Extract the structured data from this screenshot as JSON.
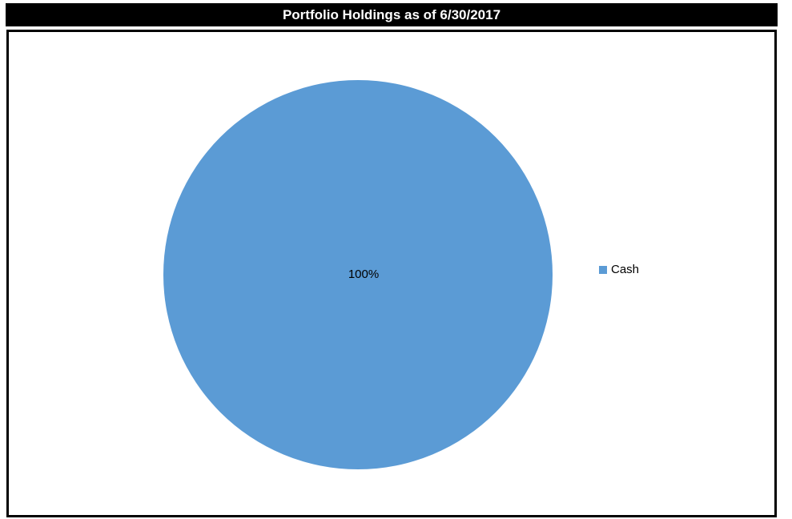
{
  "chart_data": {
    "type": "pie",
    "title": "Portfolio Holdings as of 6/30/2017",
    "categories": [
      "Cash"
    ],
    "values": [
      100
    ],
    "data_labels": [
      "100%"
    ],
    "colors": [
      "#5b9bd5"
    ],
    "legend_position": "right"
  }
}
